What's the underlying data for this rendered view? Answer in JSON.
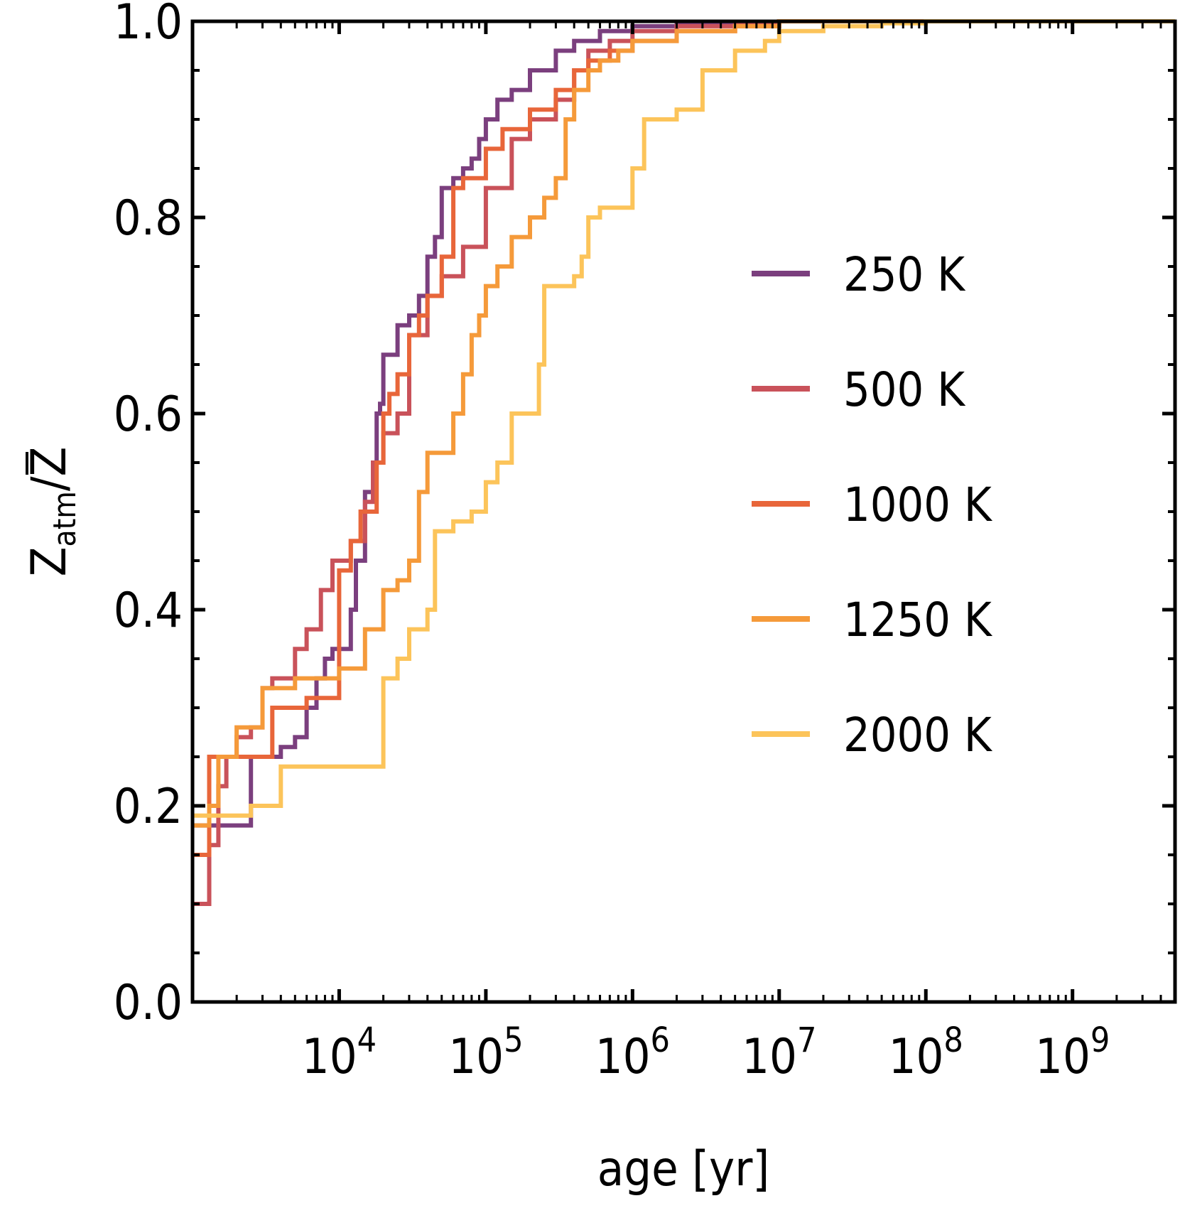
{
  "chart_data": {
    "type": "line",
    "xlabel": "age [yr]",
    "ylabel": "Z_atm / Z̄",
    "ylabel_parts": {
      "main": "Z",
      "sub": "atm",
      "sep": "/",
      "denom": "Z"
    },
    "x_scale": "log",
    "xlim": [
      1000,
      5000000000
    ],
    "ylim": [
      0.0,
      1.0
    ],
    "x_ticks": [
      {
        "value": 10000,
        "base": "10",
        "exp": "4"
      },
      {
        "value": 100000,
        "base": "10",
        "exp": "5"
      },
      {
        "value": 1000000,
        "base": "10",
        "exp": "6"
      },
      {
        "value": 10000000,
        "base": "10",
        "exp": "7"
      },
      {
        "value": 100000000,
        "base": "10",
        "exp": "8"
      },
      {
        "value": 1000000000,
        "base": "10",
        "exp": "9"
      }
    ],
    "y_ticks": [
      "0.0",
      "0.2",
      "0.4",
      "0.6",
      "0.8",
      "1.0"
    ],
    "y_tick_values": [
      0.0,
      0.2,
      0.4,
      0.6,
      0.8,
      1.0
    ],
    "legend_position": "right-middle",
    "grid": false,
    "series": [
      {
        "name": "250 K",
        "color": "#7b3f7e",
        "step_x": [
          1000,
          2500,
          3500,
          4000,
          5000,
          6000,
          7000,
          8000,
          9000,
          12000,
          13000,
          15000,
          17000,
          18000,
          19000,
          20000,
          22000,
          25000,
          30000,
          35000,
          40000,
          45000,
          50000,
          60000,
          70000,
          80000,
          90000,
          100000,
          120000,
          150000,
          200000,
          300000,
          400000,
          600000,
          1000000,
          2000000,
          5000000,
          10000000,
          100000000,
          5000000000
        ],
        "step_y": [
          0.18,
          0.25,
          0.25,
          0.26,
          0.27,
          0.3,
          0.33,
          0.35,
          0.36,
          0.4,
          0.45,
          0.52,
          0.55,
          0.6,
          0.61,
          0.66,
          0.66,
          0.69,
          0.7,
          0.72,
          0.76,
          0.78,
          0.83,
          0.84,
          0.85,
          0.86,
          0.88,
          0.9,
          0.92,
          0.93,
          0.95,
          0.97,
          0.98,
          0.99,
          0.995,
          0.998,
          0.999,
          1.0,
          1.0,
          1.0
        ]
      },
      {
        "name": "500 K",
        "color": "#c9525a",
        "step_x": [
          1000,
          1300,
          1500,
          1700,
          2000,
          2500,
          3000,
          3500,
          5000,
          6000,
          7500,
          9000,
          12000,
          15000,
          17000,
          20000,
          25000,
          30000,
          40000,
          50000,
          70000,
          100000,
          150000,
          200000,
          300000,
          400000,
          500000,
          700000,
          1000000,
          2000000,
          5000000,
          10000000,
          100000000,
          5000000000
        ],
        "step_y": [
          0.1,
          0.16,
          0.22,
          0.25,
          0.27,
          0.28,
          0.32,
          0.33,
          0.36,
          0.38,
          0.42,
          0.45,
          0.47,
          0.51,
          0.55,
          0.58,
          0.6,
          0.68,
          0.72,
          0.74,
          0.77,
          0.83,
          0.88,
          0.9,
          0.92,
          0.95,
          0.97,
          0.98,
          0.99,
          0.995,
          0.998,
          1.0,
          1.0,
          1.0
        ]
      },
      {
        "name": "1000 K",
        "color": "#e8663a",
        "step_x": [
          1000,
          1300,
          1500,
          2000,
          3000,
          3500,
          4000,
          6000,
          8000,
          10000,
          12000,
          14000,
          16000,
          18000,
          20000,
          22000,
          25000,
          30000,
          35000,
          40000,
          50000,
          60000,
          70000,
          80000,
          100000,
          130000,
          200000,
          300000,
          400000,
          500000,
          700000,
          1000000,
          2000000,
          5000000,
          10000000,
          100000000,
          5000000000
        ],
        "step_y": [
          0.15,
          0.25,
          0.25,
          0.25,
          0.25,
          0.3,
          0.3,
          0.31,
          0.31,
          0.44,
          0.47,
          0.5,
          0.5,
          0.55,
          0.6,
          0.62,
          0.64,
          0.68,
          0.7,
          0.72,
          0.76,
          0.83,
          0.84,
          0.84,
          0.87,
          0.89,
          0.91,
          0.93,
          0.95,
          0.96,
          0.97,
          0.98,
          0.99,
          0.995,
          1.0,
          1.0,
          1.0
        ]
      },
      {
        "name": "1250 K",
        "color": "#f59a3a",
        "step_x": [
          1000,
          1300,
          1500,
          2000,
          3000,
          4000,
          5000,
          8000,
          10000,
          15000,
          20000,
          25000,
          30000,
          35000,
          40000,
          50000,
          60000,
          70000,
          80000,
          90000,
          100000,
          120000,
          150000,
          200000,
          250000,
          300000,
          350000,
          400000,
          500000,
          600000,
          800000,
          1000000,
          2000000,
          5000000,
          10000000,
          100000000,
          5000000000
        ],
        "step_y": [
          0.18,
          0.2,
          0.25,
          0.28,
          0.32,
          0.32,
          0.33,
          0.33,
          0.34,
          0.38,
          0.42,
          0.43,
          0.45,
          0.52,
          0.56,
          0.56,
          0.6,
          0.64,
          0.68,
          0.7,
          0.73,
          0.75,
          0.78,
          0.8,
          0.82,
          0.84,
          0.9,
          0.93,
          0.95,
          0.96,
          0.97,
          0.98,
          0.99,
          0.995,
          1.0,
          1.0,
          1.0
        ]
      },
      {
        "name": "2000 K",
        "color": "#fcc45a",
        "step_x": [
          1000,
          2500,
          4000,
          8000,
          12000,
          15000,
          19000,
          20000,
          25000,
          30000,
          40000,
          45000,
          50000,
          60000,
          80000,
          100000,
          120000,
          150000,
          200000,
          230000,
          250000,
          300000,
          400000,
          450000,
          500000,
          600000,
          800000,
          1000000,
          1200000,
          2000000,
          3000000,
          5000000,
          8000000,
          10000000,
          20000000,
          50000000,
          100000000,
          5000000000
        ],
        "step_y": [
          0.19,
          0.2,
          0.24,
          0.24,
          0.24,
          0.24,
          0.24,
          0.33,
          0.35,
          0.38,
          0.4,
          0.48,
          0.48,
          0.49,
          0.5,
          0.53,
          0.55,
          0.6,
          0.6,
          0.65,
          0.73,
          0.73,
          0.74,
          0.76,
          0.8,
          0.81,
          0.81,
          0.85,
          0.9,
          0.91,
          0.95,
          0.97,
          0.98,
          0.99,
          0.995,
          0.998,
          1.0,
          1.0
        ]
      }
    ]
  }
}
